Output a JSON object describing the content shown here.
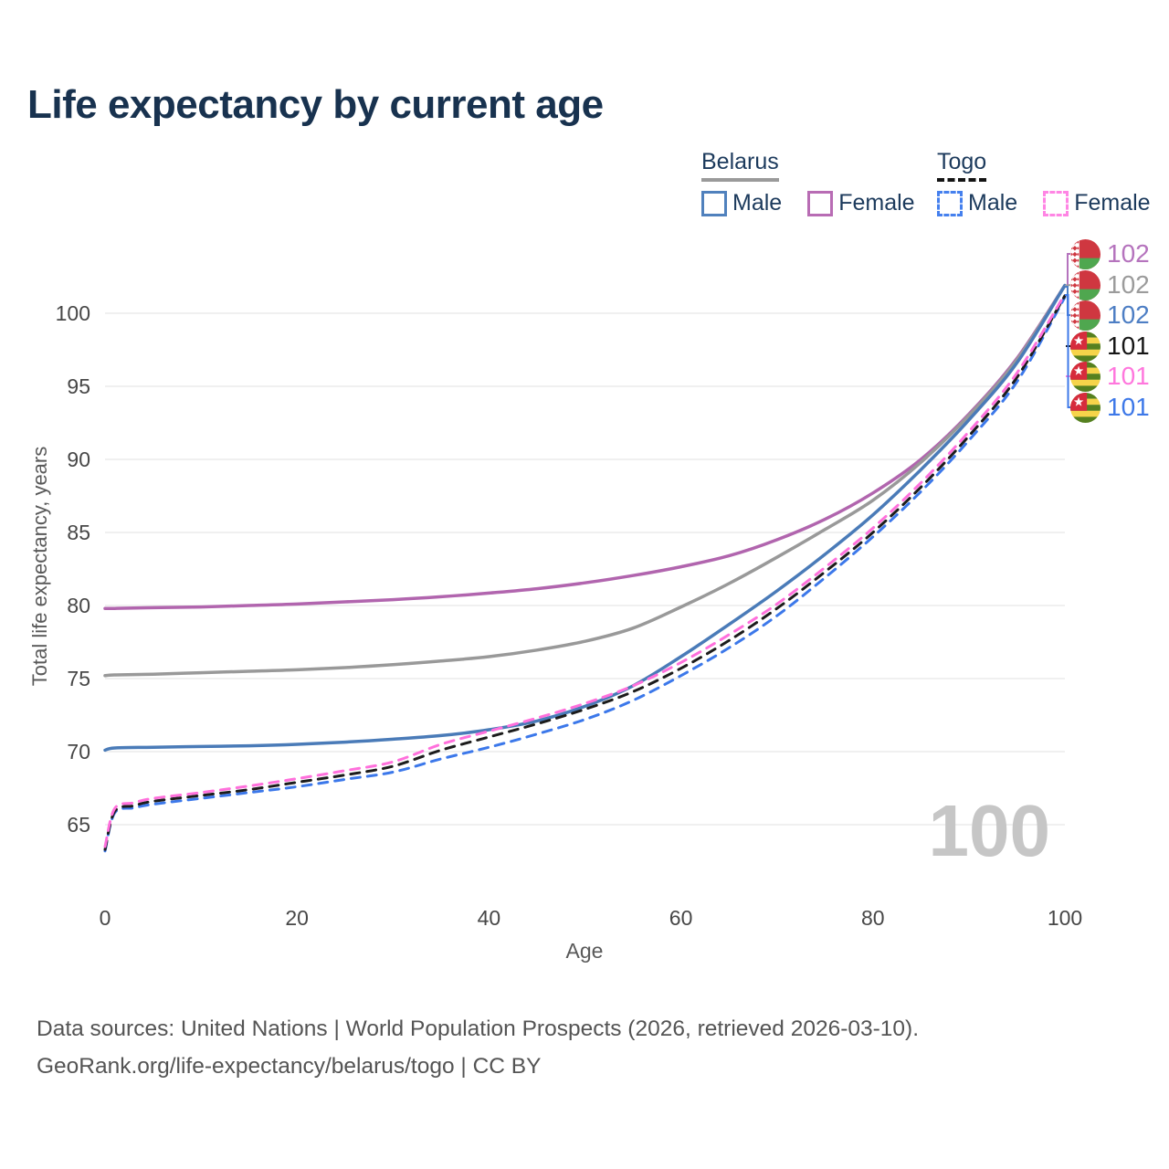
{
  "title": "Life expectancy by current age",
  "legend": {
    "groups": [
      {
        "label": "Belarus",
        "underline": "solid",
        "underline_color": "#9a9a9a",
        "items": [
          {
            "label": "Male",
            "color": "#5081bd",
            "dashed": false
          },
          {
            "label": "Female",
            "color": "#b86cb4",
            "dashed": false
          }
        ]
      },
      {
        "label": "Togo",
        "underline": "dashed",
        "underline_color": "#141414",
        "items": [
          {
            "label": "Male",
            "color": "#4580ee",
            "dashed": true
          },
          {
            "label": "Female",
            "color": "#ff85e4",
            "dashed": true
          }
        ]
      }
    ]
  },
  "chart_data": {
    "type": "line",
    "title": "Life expectancy by current age",
    "xlabel": "Age",
    "ylabel": "Total life expectancy, years",
    "xlim": [
      0,
      100
    ],
    "ylim": [
      63,
      103
    ],
    "x_ticks": [
      0,
      20,
      40,
      60,
      80,
      100
    ],
    "y_ticks": [
      65,
      70,
      75,
      80,
      85,
      90,
      95,
      100
    ],
    "grid": "horizontal",
    "legend_position": "top-right",
    "series": [
      {
        "name": "Belarus Female",
        "country": "Belarus",
        "sex": "female",
        "color": "#b165ae",
        "dash": false,
        "end_value": 102,
        "points": [
          [
            0,
            79.8
          ],
          [
            1,
            79.8
          ],
          [
            5,
            79.85
          ],
          [
            10,
            79.9
          ],
          [
            15,
            80.0
          ],
          [
            20,
            80.1
          ],
          [
            25,
            80.25
          ],
          [
            30,
            80.4
          ],
          [
            35,
            80.6
          ],
          [
            40,
            80.85
          ],
          [
            45,
            81.15
          ],
          [
            50,
            81.55
          ],
          [
            55,
            82.05
          ],
          [
            60,
            82.65
          ],
          [
            65,
            83.4
          ],
          [
            70,
            84.5
          ],
          [
            75,
            85.9
          ],
          [
            80,
            87.7
          ],
          [
            85,
            90.0
          ],
          [
            90,
            93.1
          ],
          [
            95,
            96.9
          ],
          [
            100,
            101.9
          ]
        ]
      },
      {
        "name": "Belarus Both sexes",
        "country": "Belarus",
        "sex": "both",
        "color": "#999999",
        "dash": false,
        "end_value": 102,
        "points": [
          [
            0,
            75.2
          ],
          [
            1,
            75.25
          ],
          [
            5,
            75.3
          ],
          [
            10,
            75.4
          ],
          [
            15,
            75.5
          ],
          [
            20,
            75.6
          ],
          [
            25,
            75.75
          ],
          [
            30,
            75.95
          ],
          [
            35,
            76.2
          ],
          [
            40,
            76.5
          ],
          [
            45,
            76.95
          ],
          [
            50,
            77.55
          ],
          [
            55,
            78.45
          ],
          [
            60,
            79.9
          ],
          [
            65,
            81.5
          ],
          [
            70,
            83.3
          ],
          [
            75,
            85.2
          ],
          [
            80,
            87.2
          ],
          [
            85,
            89.8
          ],
          [
            90,
            93.0
          ],
          [
            95,
            96.8
          ],
          [
            100,
            101.9
          ]
        ]
      },
      {
        "name": "Belarus Male",
        "country": "Belarus",
        "sex": "male",
        "color": "#4a7bb8",
        "dash": false,
        "end_value": 102,
        "points": [
          [
            0,
            70.1
          ],
          [
            1,
            70.25
          ],
          [
            5,
            70.3
          ],
          [
            10,
            70.35
          ],
          [
            15,
            70.4
          ],
          [
            20,
            70.5
          ],
          [
            25,
            70.65
          ],
          [
            30,
            70.85
          ],
          [
            35,
            71.1
          ],
          [
            40,
            71.5
          ],
          [
            45,
            72.1
          ],
          [
            50,
            73.1
          ],
          [
            55,
            74.5
          ],
          [
            60,
            76.5
          ],
          [
            65,
            78.7
          ],
          [
            70,
            81.0
          ],
          [
            75,
            83.5
          ],
          [
            80,
            86.2
          ],
          [
            85,
            89.3
          ],
          [
            90,
            92.7
          ],
          [
            95,
            96.6
          ],
          [
            100,
            101.9
          ]
        ]
      },
      {
        "name": "Togo Male",
        "country": "Togo",
        "sex": "male",
        "color": "#3c78ea",
        "dash": true,
        "end_value": 101,
        "points": [
          [
            0,
            63.2
          ],
          [
            1,
            65.8
          ],
          [
            3,
            66.15
          ],
          [
            5,
            66.4
          ],
          [
            10,
            66.8
          ],
          [
            15,
            67.2
          ],
          [
            20,
            67.6
          ],
          [
            25,
            68.1
          ],
          [
            30,
            68.6
          ],
          [
            35,
            69.5
          ],
          [
            40,
            70.3
          ],
          [
            45,
            71.2
          ],
          [
            50,
            72.2
          ],
          [
            55,
            73.5
          ],
          [
            60,
            75.2
          ],
          [
            65,
            77.1
          ],
          [
            70,
            79.3
          ],
          [
            75,
            81.9
          ],
          [
            80,
            84.7
          ],
          [
            85,
            87.8
          ],
          [
            90,
            91.3
          ],
          [
            95,
            95.3
          ],
          [
            100,
            101.1
          ]
        ]
      },
      {
        "name": "Togo Both sexes",
        "country": "Togo",
        "sex": "both",
        "color": "#1c1c1c",
        "dash": true,
        "end_value": 101,
        "points": [
          [
            0,
            63.3
          ],
          [
            1,
            65.9
          ],
          [
            3,
            66.3
          ],
          [
            5,
            66.6
          ],
          [
            10,
            67.0
          ],
          [
            15,
            67.4
          ],
          [
            20,
            67.9
          ],
          [
            25,
            68.4
          ],
          [
            30,
            69.0
          ],
          [
            35,
            70.1
          ],
          [
            40,
            71.0
          ],
          [
            45,
            71.9
          ],
          [
            50,
            72.9
          ],
          [
            55,
            74.1
          ],
          [
            60,
            75.7
          ],
          [
            65,
            77.6
          ],
          [
            70,
            79.8
          ],
          [
            75,
            82.3
          ],
          [
            80,
            85.0
          ],
          [
            85,
            88.1
          ],
          [
            90,
            91.6
          ],
          [
            95,
            95.6
          ],
          [
            100,
            101.2
          ]
        ]
      },
      {
        "name": "Togo Female",
        "country": "Togo",
        "sex": "female",
        "color": "#ff70dc",
        "dash": true,
        "end_value": 101,
        "points": [
          [
            0,
            63.5
          ],
          [
            1,
            66.1
          ],
          [
            3,
            66.5
          ],
          [
            5,
            66.8
          ],
          [
            10,
            67.2
          ],
          [
            15,
            67.65
          ],
          [
            20,
            68.15
          ],
          [
            25,
            68.7
          ],
          [
            30,
            69.3
          ],
          [
            35,
            70.5
          ],
          [
            40,
            71.4
          ],
          [
            45,
            72.3
          ],
          [
            50,
            73.3
          ],
          [
            55,
            74.5
          ],
          [
            60,
            76.1
          ],
          [
            65,
            78.0
          ],
          [
            70,
            80.1
          ],
          [
            75,
            82.6
          ],
          [
            80,
            85.3
          ],
          [
            85,
            88.4
          ],
          [
            90,
            91.9
          ],
          [
            95,
            95.9
          ],
          [
            100,
            101.3
          ]
        ]
      }
    ]
  },
  "end_labels": [
    {
      "value": "102",
      "color": "#b573bd",
      "flag": "belarus"
    },
    {
      "value": "102",
      "color": "#9b9b9b",
      "flag": "belarus"
    },
    {
      "value": "102",
      "color": "#4d7ec4",
      "flag": "belarus"
    },
    {
      "value": "101",
      "color": "#151515",
      "flag": "togo"
    },
    {
      "value": "101",
      "color": "#ff77dd",
      "flag": "togo"
    },
    {
      "value": "101",
      "color": "#3d78e8",
      "flag": "togo"
    }
  ],
  "flags": {
    "belarus": {
      "red": "#cf3740",
      "green": "#4fa74f",
      "white": "#ffffff"
    },
    "togo": {
      "red": "#d62b3c",
      "yellow": "#f6d44a",
      "green": "#55801f",
      "star": "#ffffff"
    }
  },
  "watermark": "100",
  "footer": {
    "line1": "Data sources: United Nations | World Population Prospects (2026, retrieved 2026-03-10).",
    "line2": "GeoRank.org/life-expectancy/belarus/togo | CC BY"
  }
}
